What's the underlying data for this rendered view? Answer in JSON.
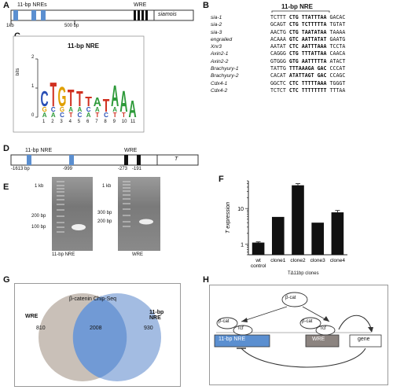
{
  "panels": {
    "A": {
      "label": "A",
      "nre_label": "11-bp NREs",
      "wre_label": "WRE",
      "gene_label": "siamois",
      "scale_left": "1kb",
      "scale_mid": "500 bp"
    },
    "B": {
      "label": "B",
      "header": "11-bp NRE",
      "rows": [
        {
          "gene": "sia-1",
          "left": "TCTTT",
          "core": "CTG TTATTTAA",
          "right": "GACAC"
        },
        {
          "gene": "sia-2",
          "left": "GCAGT",
          "core": "CTG TCTTTTTA",
          "right": "TGTAT"
        },
        {
          "gene": "sia-3",
          "left": "AACTG",
          "core": "CTG TAATATAA",
          "right": "TAAAA"
        },
        {
          "gene": "engrailed",
          "left": "ACAAA",
          "core": "GTC AATTATAT",
          "right": "GAATG"
        },
        {
          "gene": "Xnr3",
          "left": "AATAT",
          "core": "CTC AATTTAAA",
          "right": "TCCTA"
        },
        {
          "gene": "Axin2-1",
          "left": "CAGGG",
          "core": "CTG TTTATTAA",
          "right": "CAACA"
        },
        {
          "gene": "Axin2-2",
          "left": "GTGGG",
          "core": "GTG AATTTTTA",
          "right": "ATACT"
        },
        {
          "gene": "Brachyury-1",
          "left": "TATTG",
          "core": "TTTAAAGA GAC",
          "right": "CCCAT"
        },
        {
          "gene": "Brachyury-2",
          "left": "CACAT",
          "core": "ATATTAGT GAC",
          "right": "CCAGC"
        },
        {
          "gene": "Cdx4-1",
          "left": "GGCTC",
          "core": "CTC TTTTTAAA",
          "right": "TGGGT"
        },
        {
          "gene": "Cdx4-2",
          "left": "TCTCT",
          "core": "CTC TTTTTTTT",
          "right": "TTTAA"
        }
      ]
    },
    "C": {
      "label": "C",
      "title": "11-bp NRE",
      "ylabel": "bits",
      "yticks": [
        "0",
        "1",
        "2"
      ],
      "positions": [
        "1",
        "2",
        "3",
        "4",
        "5",
        "6",
        "7",
        "8",
        "9",
        "10",
        "11"
      ],
      "top_letters": [
        "C",
        "T",
        "G",
        "T",
        "T",
        "T",
        "A",
        "T",
        "A",
        "A",
        "A"
      ],
      "colors": {
        "A": "#2e9a3a",
        "C": "#2a4fb5",
        "G": "#e0a000",
        "T": "#d03020"
      }
    },
    "D": {
      "label": "D",
      "nre_label": "11-bp NRE",
      "wre_label": "WRE",
      "gene_label": "T",
      "pos_labels": [
        "-1613 bp",
        "-999",
        "-273",
        "-191"
      ]
    },
    "E": {
      "label": "E",
      "left_markers": [
        "1 kb",
        "200 bp",
        "100 bp"
      ],
      "right_markers": [
        "1 kb",
        "300 bp",
        "200 bp"
      ],
      "left_caption": "11-bp NRE",
      "right_caption": "WRE"
    },
    "F": {
      "label": "F",
      "caption": "TΔ11bp clones"
    },
    "G": {
      "label": "G",
      "title": "β-catenin Chip-Seq",
      "left_name": "WRE",
      "right_name": "11-bp NRE",
      "left_only": "810",
      "overlap": "2008",
      "right_only": "930"
    },
    "H": {
      "label": "H",
      "bcat": "β-cat",
      "tcf": "Tcf",
      "nre": "11-bp NRE",
      "wre": "WRE",
      "gene": "gene"
    }
  },
  "chart_data": {
    "type": "bar",
    "categories": [
      "wt control",
      "clone1",
      "clone2",
      "clone3",
      "clone4"
    ],
    "values": [
      1.1,
      5.8,
      45,
      4.0,
      7.8
    ],
    "errors": [
      0.05,
      0,
      5,
      0,
      1.0
    ],
    "title": "",
    "xlabel": "TΔ11bp clones",
    "ylabel": "T expression",
    "scale": "log",
    "yticks": [
      1,
      10
    ],
    "ylim": [
      0.5,
      60
    ]
  }
}
